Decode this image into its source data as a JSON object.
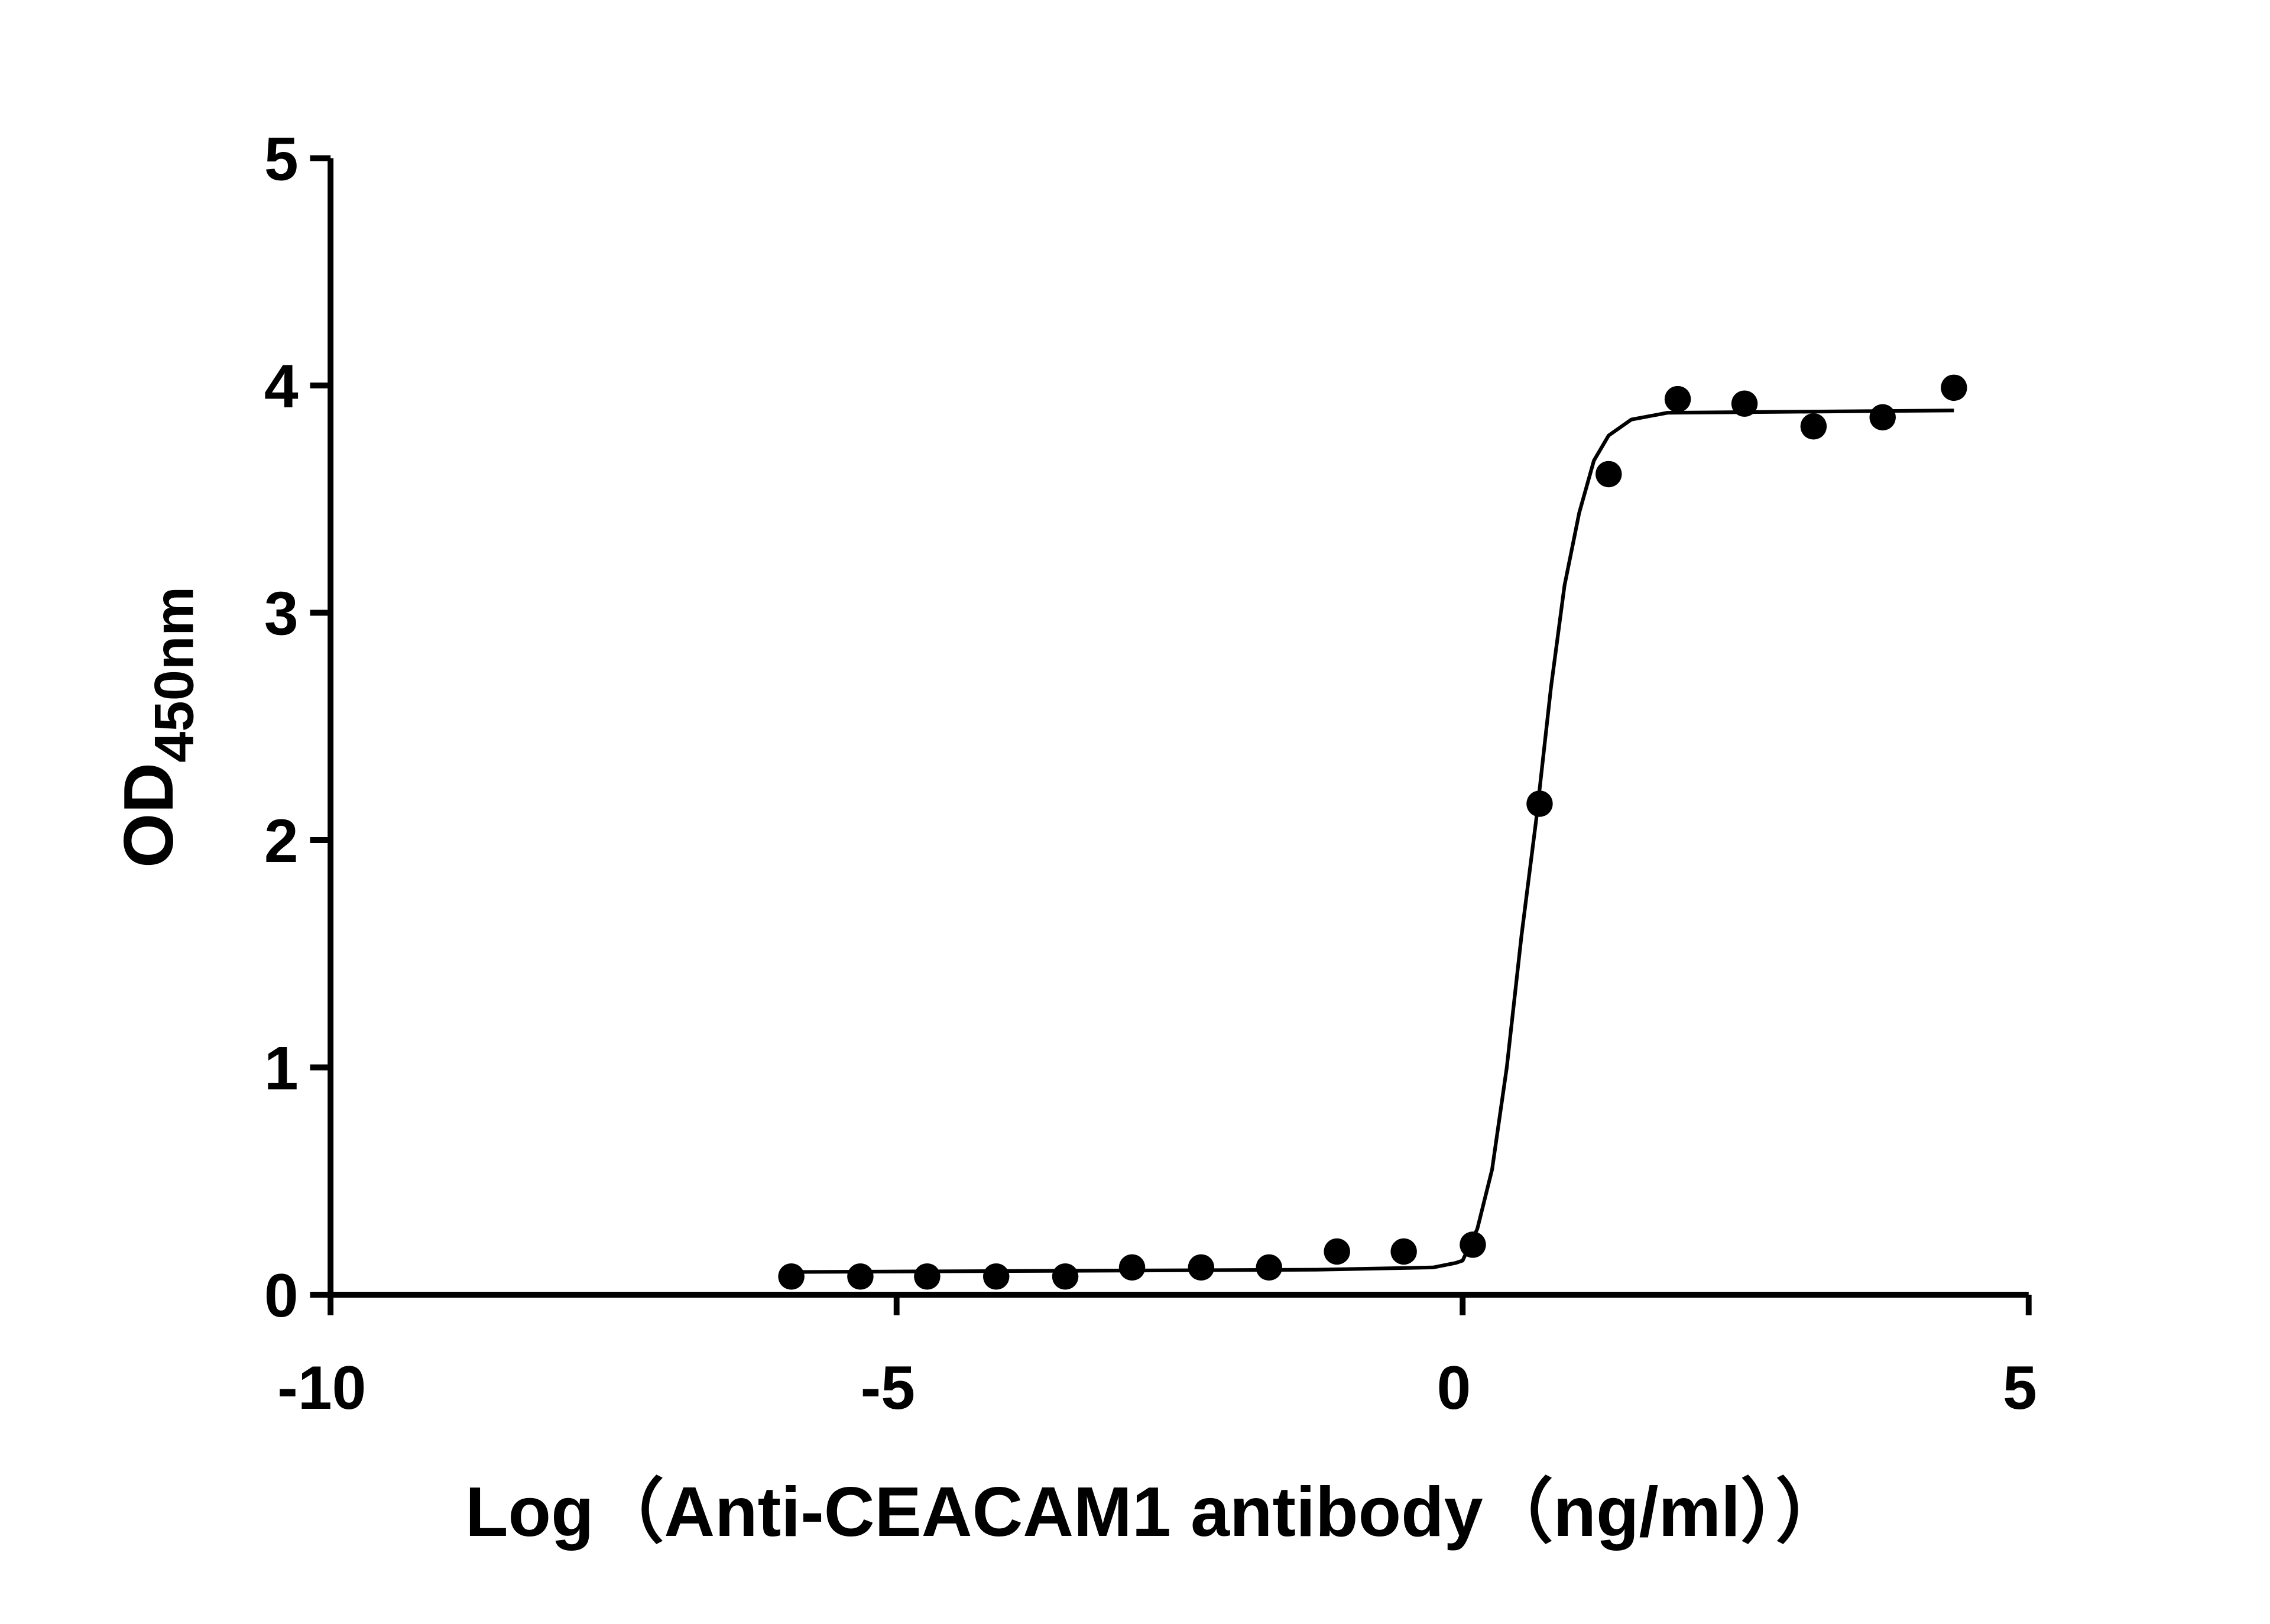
{
  "chart_data": {
    "type": "scatter",
    "x_label": "Log（Anti-CEACAM1 antibody（ng/ml））",
    "y_label": "OD",
    "y_label_sub": "450nm",
    "xlim": [
      -10,
      5
    ],
    "xticks": [
      -10,
      -5,
      0,
      5
    ],
    "ylim": [
      0,
      5
    ],
    "yticks": [
      0,
      1,
      2,
      3,
      4,
      5
    ],
    "grid": false,
    "series": [
      {
        "style": "markers",
        "color": "#000000",
        "x": [
          -5.93,
          -5.32,
          -4.73,
          -4.12,
          -3.51,
          -2.92,
          -2.31,
          -1.71,
          -1.11,
          -0.52,
          0.09,
          0.68,
          1.29,
          1.9,
          2.49,
          3.1,
          3.71,
          4.34
        ],
        "values": [
          0.08,
          0.08,
          0.08,
          0.08,
          0.08,
          0.12,
          0.12,
          0.12,
          0.19,
          0.19,
          0.22,
          2.16,
          3.61,
          3.94,
          3.92,
          3.82,
          3.86,
          3.99
        ]
      },
      {
        "style": "line",
        "color": "#000000",
        "x": [
          -5.93,
          -1.29,
          -0.26,
          -0.06,
          0,
          0.13,
          0.26,
          0.39,
          0.52,
          0.65,
          0.78,
          0.9,
          1.03,
          1.16,
          1.29,
          1.49,
          1.81,
          4.34
        ],
        "values": [
          0.1,
          0.11,
          0.12,
          0.14,
          0.15,
          0.29,
          0.55,
          1.0,
          1.58,
          2.09,
          2.67,
          3.12,
          3.44,
          3.67,
          3.78,
          3.85,
          3.88,
          3.89
        ]
      }
    ]
  }
}
